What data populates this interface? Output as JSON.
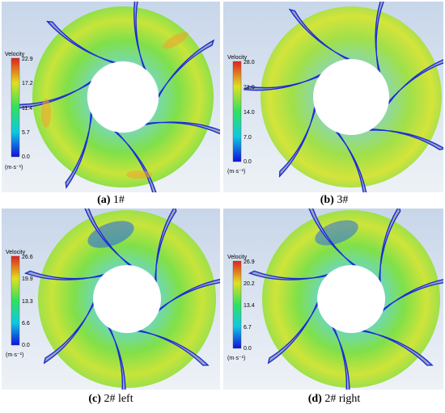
{
  "panels": [
    {
      "id": "a",
      "caption_letter": "(a)",
      "caption_text": " 1#",
      "legend": {
        "title": "Velocity",
        "ticks": [
          "22.9",
          "17.2",
          "11.4",
          "5.7",
          "0.0"
        ],
        "unit": "(m·s⁻¹)"
      }
    },
    {
      "id": "b",
      "caption_letter": "(b)",
      "caption_text": " 3#",
      "legend": {
        "title": "Velocity",
        "ticks": [
          "28.0",
          "21.0",
          "14.0",
          "7.0",
          "0.0"
        ],
        "unit": "(m·s⁻¹)"
      }
    },
    {
      "id": "c",
      "caption_letter": "(c)",
      "caption_text": " 2# left",
      "legend": {
        "title": "Velocity",
        "ticks": [
          "26.6",
          "19.9",
          "13.3",
          "6.6",
          "0.0"
        ],
        "unit": "(m·s⁻¹)"
      }
    },
    {
      "id": "d",
      "caption_letter": "(d)",
      "caption_text": " 2# right",
      "legend": {
        "title": "Velocity",
        "ticks": [
          "26.9",
          "20.2",
          "13.4",
          "6.7",
          "0.0"
        ],
        "unit": "(m·s⁻¹)"
      }
    }
  ],
  "colors": {
    "panel_bg": "#d7e1ee",
    "blade": "#9aa7b8",
    "blade_edge": "#1d2bd8",
    "flow_green": "#6fe04a",
    "flow_yellow": "#d8e53a",
    "flow_cyan": "#2cc6c6",
    "flow_blue": "#2a6fe0",
    "flow_orange": "#f0a030"
  }
}
